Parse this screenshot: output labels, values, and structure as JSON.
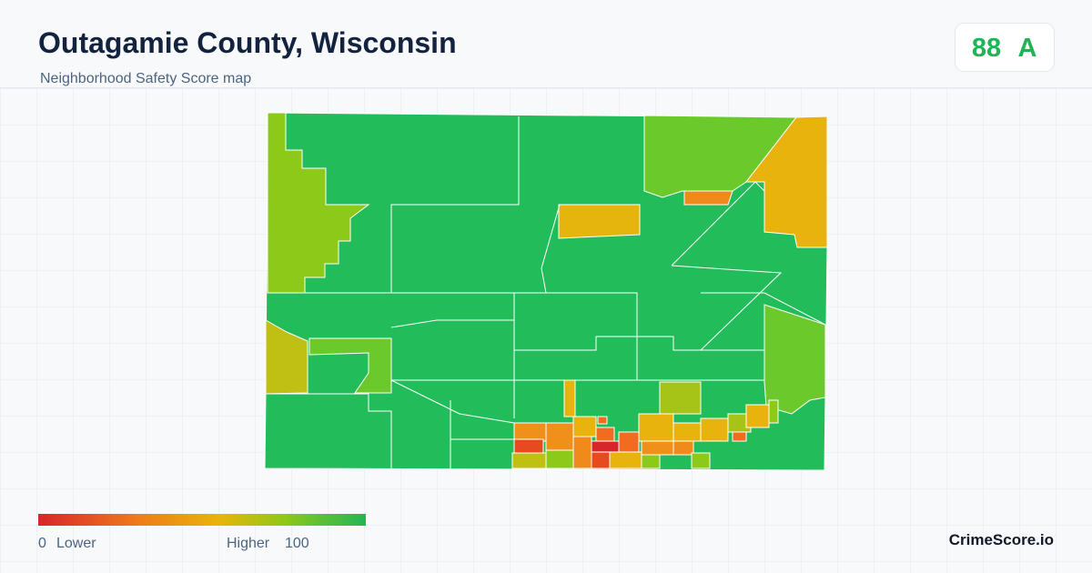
{
  "header": {
    "title": "Outagamie County, Wisconsin",
    "subtitle": "Neighborhood Safety Score map"
  },
  "score": {
    "value": 88,
    "grade": "A"
  },
  "legend": {
    "min": 0,
    "min_label": "Lower",
    "max_label": "Higher",
    "max": 100
  },
  "brand": "CrimeScore.io"
}
